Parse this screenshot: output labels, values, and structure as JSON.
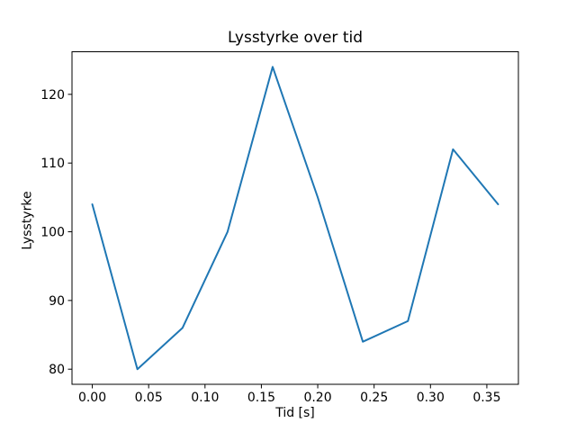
{
  "figure": {
    "background": "#ffffff"
  },
  "chart_data": {
    "type": "line",
    "title": "Lysstyrke over tid",
    "xlabel": "Tid [s]",
    "ylabel": "Lysstyrke",
    "x": [
      0.0,
      0.04,
      0.08,
      0.12,
      0.16,
      0.2,
      0.24,
      0.28,
      0.32,
      0.36
    ],
    "y": [
      104,
      80,
      86,
      100,
      124,
      105,
      84,
      87,
      112,
      104
    ],
    "xlim": [
      -0.018,
      0.378
    ],
    "ylim": [
      77.8,
      126.2
    ],
    "xtick_values": [
      0.0,
      0.05,
      0.1,
      0.15,
      0.2,
      0.25,
      0.3,
      0.35
    ],
    "xtick_labels": [
      "0.00",
      "0.05",
      "0.10",
      "0.15",
      "0.20",
      "0.25",
      "0.30",
      "0.35"
    ],
    "ytick_values": [
      80,
      90,
      100,
      110,
      120
    ],
    "ytick_labels": [
      "80",
      "90",
      "100",
      "110",
      "120"
    ],
    "grid": false,
    "legend": null,
    "line_color": "#1f77b4",
    "axis_color": "#000000",
    "text_color": "#000000"
  }
}
